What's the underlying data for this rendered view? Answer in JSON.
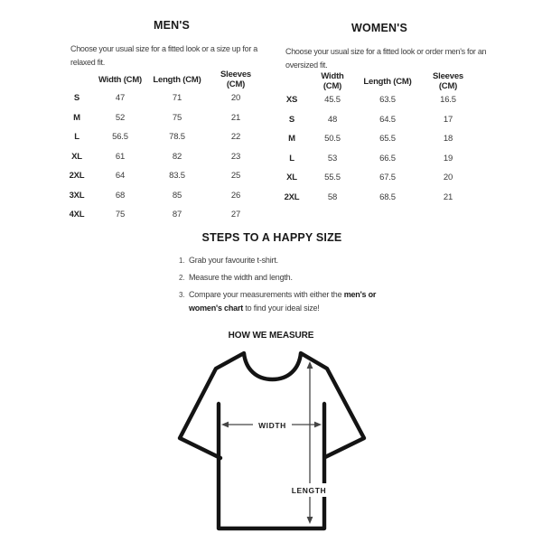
{
  "mens": {
    "title": "MEN'S",
    "description": "Choose your usual size for a fitted look or a size up for a\nrelaxed fit.",
    "columns": [
      "Width (CM)",
      "Length (CM)",
      "Sleeves (CM)"
    ],
    "rows": [
      {
        "size": "S",
        "width": "47",
        "length": "71",
        "sleeves": "20"
      },
      {
        "size": "M",
        "width": "52",
        "length": "75",
        "sleeves": "21"
      },
      {
        "size": "L",
        "width": "56.5",
        "length": "78.5",
        "sleeves": "22"
      },
      {
        "size": "XL",
        "width": "61",
        "length": "82",
        "sleeves": "23"
      },
      {
        "size": "2XL",
        "width": "64",
        "length": "83.5",
        "sleeves": "25"
      },
      {
        "size": "3XL",
        "width": "68",
        "length": "85",
        "sleeves": "26"
      },
      {
        "size": "4XL",
        "width": "75",
        "length": "87",
        "sleeves": "27"
      }
    ]
  },
  "womens": {
    "title": "WOMEN'S",
    "description": "Choose your usual size for a fitted look or order men's for an\noversized fit.",
    "columns": [
      "Width (CM)",
      "Length (CM)",
      "Sleeves (CM)"
    ],
    "rows": [
      {
        "size": "XS",
        "width": "45.5",
        "length": "63.5",
        "sleeves": "16.5"
      },
      {
        "size": "S",
        "width": "48",
        "length": "64.5",
        "sleeves": "17"
      },
      {
        "size": "M",
        "width": "50.5",
        "length": "65.5",
        "sleeves": "18"
      },
      {
        "size": "L",
        "width": "53",
        "length": "66.5",
        "sleeves": "19"
      },
      {
        "size": "XL",
        "width": "55.5",
        "length": "67.5",
        "sleeves": "20"
      },
      {
        "size": "2XL",
        "width": "58",
        "length": "68.5",
        "sleeves": "21"
      }
    ]
  },
  "steps": {
    "title": "STEPS TO A HAPPY SIZE",
    "items": [
      {
        "num": "1.",
        "parts": [
          {
            "text": "Grab your favourite t-shirt.",
            "bold": false
          }
        ]
      },
      {
        "num": "2.",
        "parts": [
          {
            "text": "Measure the width and length.",
            "bold": false
          }
        ]
      },
      {
        "num": "3.",
        "parts": [
          {
            "text": "Compare your measurements with either the ",
            "bold": false
          },
          {
            "text": "men's or\nwomen's chart",
            "bold": true
          },
          {
            "text": " to find your ideal size!",
            "bold": false
          }
        ]
      }
    ]
  },
  "measure": {
    "title": "HOW WE MEASURE",
    "width_label": "WIDTH",
    "length_label": "LENGTH"
  },
  "colors": {
    "ink": "#191919",
    "body_text": "#3c3c3c",
    "shirt_outline": "#141414",
    "arrow": "#454545",
    "background": "#ffffff"
  }
}
